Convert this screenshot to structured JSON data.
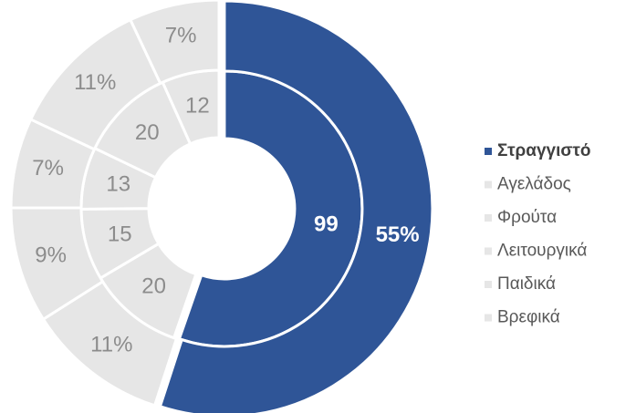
{
  "chart_data": {
    "type": "donut",
    "categories": [
      "Στραγγιστό",
      "Αγελάδος",
      "Φρούτα",
      "Λειτουργικά",
      "Παιδικά",
      "Βρεφικά"
    ],
    "colors": [
      "#2f5597",
      "#e6e6e6",
      "#e6e6e6",
      "#e6e6e6",
      "#e6e6e6",
      "#e6e6e6"
    ],
    "highlight": 0,
    "legend": "right",
    "series": [
      {
        "values": [
          99,
          20,
          15,
          13,
          20,
          12
        ]
      },
      {
        "values": [
          55,
          11,
          9,
          7,
          11,
          7
        ]
      }
    ]
  }
}
